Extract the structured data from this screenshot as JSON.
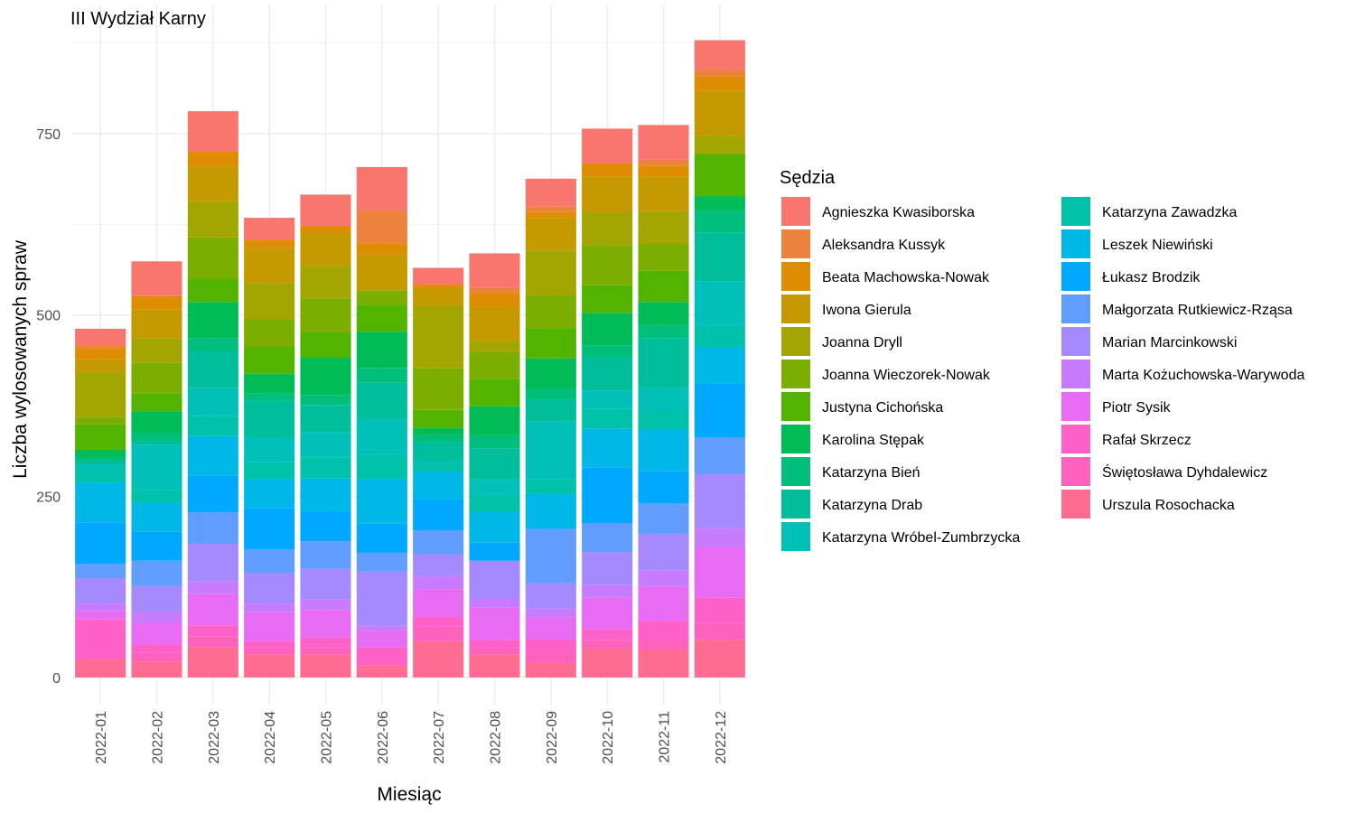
{
  "chart_data": {
    "type": "bar",
    "stacked": true,
    "title": "III Wydział Karny",
    "xlabel": "Miesiąc",
    "ylabel": "Liczba wylosowanych spraw",
    "ylim": [
      0,
      875
    ],
    "yticks": [
      0,
      250,
      500,
      750
    ],
    "grid": true,
    "legend_title": "Sędzia",
    "legend_position": "right",
    "categories": [
      "2022-01",
      "2022-02",
      "2022-03",
      "2022-04",
      "2022-05",
      "2022-06",
      "2022-07",
      "2022-08",
      "2022-09",
      "2022-10",
      "2022-11",
      "2022-12"
    ],
    "series": [
      {
        "name": "Urszula Rosochacka",
        "color": "#FF6C91",
        "values": [
          25,
          22,
          42,
          32,
          32,
          17,
          50,
          32,
          20,
          40,
          38,
          52
        ]
      },
      {
        "name": "Świętosława Dyhdalewicz",
        "color": "#FF62BC",
        "values": [
          3,
          12,
          15,
          8,
          10,
          3,
          20,
          8,
          15,
          12,
          15,
          23
        ]
      },
      {
        "name": "Rafał Skrzecz",
        "color": "#FF61C9",
        "values": [
          52,
          12,
          15,
          10,
          13,
          22,
          14,
          12,
          18,
          15,
          25,
          35
        ]
      },
      {
        "name": "Piotr Sysik",
        "color": "#E76BF3",
        "values": [
          12,
          30,
          43,
          40,
          38,
          22,
          38,
          45,
          30,
          43,
          48,
          70
        ]
      },
      {
        "name": "Marta Kożuchowska-Warywoda",
        "color": "#C77CFF",
        "values": [
          10,
          15,
          18,
          12,
          15,
          8,
          18,
          12,
          12,
          18,
          22,
          26
        ]
      },
      {
        "name": "Marian Marcinkowski",
        "color": "#A58AFF",
        "values": [
          35,
          35,
          52,
          42,
          42,
          75,
          30,
          52,
          35,
          45,
          50,
          75
        ]
      },
      {
        "name": "Małgorzata Rutkiewicz-Rząsa",
        "color": "#619CFF",
        "values": [
          20,
          35,
          43,
          33,
          38,
          25,
          33,
          0,
          75,
          40,
          42,
          50
        ]
      },
      {
        "name": "Łukasz Brodzik",
        "color": "#00A9FF",
        "values": [
          57,
          40,
          50,
          57,
          42,
          40,
          43,
          25,
          0,
          77,
          45,
          75
        ]
      },
      {
        "name": "Leszek Niewiński",
        "color": "#00B8E7",
        "values": [
          55,
          40,
          55,
          40,
          45,
          62,
          38,
          42,
          48,
          53,
          57,
          50
        ]
      },
      {
        "name": "Katarzyna Zawadzka",
        "color": "#00C1AA",
        "values": [
          20,
          18,
          28,
          23,
          28,
          33,
          10,
          25,
          20,
          28,
          28,
          30
        ]
      },
      {
        "name": "Katarzyna Wróbel-Zumbrzycka",
        "color": "#00C0B8",
        "values": [
          5,
          62,
          38,
          35,
          35,
          50,
          5,
          20,
          80,
          25,
          30,
          60
        ]
      },
      {
        "name": "Katarzyna Drab",
        "color": "#00BE9C",
        "values": [
          5,
          6,
          52,
          50,
          38,
          50,
          25,
          43,
          30,
          45,
          68,
          68
        ]
      },
      {
        "name": "Katarzyna Bień",
        "color": "#00BF7D",
        "values": [
          5,
          10,
          17,
          10,
          13,
          20,
          10,
          18,
          15,
          17,
          18,
          30
        ]
      },
      {
        "name": "Karolina Stępak",
        "color": "#00BC56",
        "values": [
          10,
          30,
          50,
          27,
          52,
          50,
          10,
          40,
          42,
          45,
          32,
          20
        ]
      },
      {
        "name": "Justyna Cichońska",
        "color": "#53B400",
        "values": [
          35,
          25,
          32,
          37,
          35,
          37,
          25,
          38,
          42,
          38,
          43,
          58
        ]
      },
      {
        "name": "Joanna Wieczorek-Nowak",
        "color": "#7CAE00",
        "values": [
          10,
          42,
          57,
          38,
          47,
          20,
          58,
          37,
          45,
          55,
          37,
          0
        ]
      },
      {
        "name": "Joanna Dryll",
        "color": "#A3A500",
        "values": [
          62,
          34,
          50,
          50,
          45,
          0,
          85,
          15,
          62,
          45,
          45,
          25
        ]
      },
      {
        "name": "Iwona Gierula",
        "color": "#C49A00",
        "values": [
          18,
          40,
          48,
          48,
          45,
          50,
          25,
          48,
          45,
          50,
          48,
          62
        ]
      },
      {
        "name": "Beata Machowska-Nowak",
        "color": "#DE8C00",
        "values": [
          15,
          18,
          20,
          12,
          10,
          15,
          5,
          18,
          8,
          18,
          15,
          20
        ]
      },
      {
        "name": "Aleksandra Kussyk",
        "color": "#ED813E",
        "values": [
          5,
          0,
          0,
          0,
          0,
          45,
          0,
          8,
          8,
          0,
          8,
          10
        ]
      },
      {
        "name": "Agnieszka Kwasiborska",
        "color": "#F8766D",
        "values": [
          22,
          48,
          56,
          30,
          43,
          60,
          23,
          47,
          38,
          48,
          48,
          40
        ]
      }
    ]
  }
}
